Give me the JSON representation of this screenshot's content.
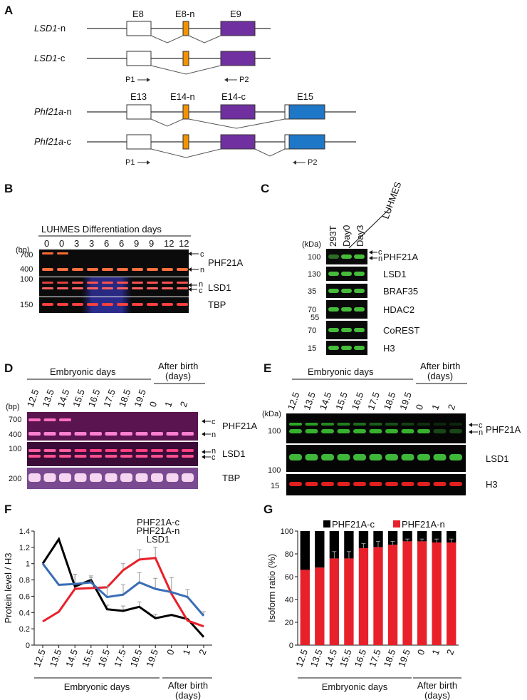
{
  "panels": {
    "a": "A",
    "b": "B",
    "c": "C",
    "d": "D",
    "e": "E",
    "f": "F",
    "g": "G"
  },
  "panel_a": {
    "lsd1": {
      "gene": "LSD1",
      "n_suffix": "-n",
      "c_suffix": "-c",
      "exons": [
        "E8",
        "E8-n",
        "E9"
      ],
      "p1": "P1",
      "p2": "P2"
    },
    "phf21a": {
      "gene": "Phf21a",
      "n_suffix": "-n",
      "c_suffix": "-c",
      "exons": [
        "E13",
        "E14-n",
        "E14-c",
        "E15"
      ],
      "p1": "P1",
      "p2": "P2"
    },
    "colors": {
      "orange": "#f39200",
      "purple": "#7030a0",
      "blue": "#1f77c8"
    }
  },
  "panel_b": {
    "title": "LUHMES Differentiation days",
    "lanes": [
      "0",
      "0",
      "3",
      "3",
      "6",
      "6",
      "9",
      "9",
      "12",
      "12"
    ],
    "unit": "(bp)",
    "markers": [
      "700",
      "400",
      "100",
      "150"
    ],
    "bands": {
      "PHF21A": "PHF21A",
      "LSD1": "LSD1",
      "TBP": "TBP"
    },
    "arrows": {
      "c": "c",
      "n": "n"
    }
  },
  "panel_c": {
    "header_group": "LUHMES",
    "lanes": [
      "293T",
      "Day0",
      "Day3"
    ],
    "unit": "(kDa)",
    "rows": [
      {
        "marker": "100",
        "label": "PHF21A"
      },
      {
        "marker": "130",
        "label": "LSD1"
      },
      {
        "marker": "35",
        "label": "BRAF35"
      },
      {
        "marker": "70",
        "label": "HDAC2",
        "marker2": "55"
      },
      {
        "marker": "70",
        "label": "CoREST"
      },
      {
        "marker": "15",
        "label": "H3"
      }
    ],
    "arrows": {
      "c": "c",
      "n": "n"
    }
  },
  "panel_d": {
    "group1": "Embryonic days",
    "group2": "After birth\n(days)",
    "group2_line1": "After birth",
    "group2_line2": "(days)",
    "lanes": [
      "12.5",
      "13.5",
      "14.5",
      "15.5",
      "16.5",
      "17.5",
      "18.5",
      "19.5",
      "0",
      "1",
      "2"
    ],
    "unit": "(bp)",
    "markers": [
      "700",
      "400",
      "100",
      "200"
    ],
    "bands": {
      "PHF21A": "PHF21A",
      "LSD1": "LSD1",
      "TBP": "TBP"
    }
  },
  "panel_e": {
    "group1": "Embryonic days",
    "group2_line1": "After birth",
    "group2_line2": "(days)",
    "lanes": [
      "12.5",
      "13.5",
      "14.5",
      "15.5",
      "16.5",
      "17.5",
      "18.5",
      "19.5",
      "0",
      "1",
      "2"
    ],
    "unit": "(kDa)",
    "markers": [
      "100",
      "100",
      "15"
    ],
    "bands": {
      "PHF21A": "PHF21A",
      "LSD1": "LSD1",
      "H3": "H3"
    }
  },
  "chart_data": [
    {
      "type": "line",
      "x": [
        "12.5",
        "13.5",
        "14.5",
        "15.5",
        "16.5",
        "17.5",
        "18.5",
        "19.5",
        "0",
        "1",
        "2"
      ],
      "ylabel": "Protein level / H3",
      "ylim": [
        0,
        1.4
      ],
      "yticks": [
        "0",
        "0.2",
        "0.4",
        "0.6",
        "0.8",
        "1",
        "1.2",
        "1.4"
      ],
      "xgroup1": "Embryonic days",
      "xgroup2_line1": "After birth",
      "xgroup2_line2": "(days)",
      "series": [
        {
          "name": "PHF21A-c",
          "color": "#000000",
          "values": [
            1.0,
            1.3,
            0.72,
            0.8,
            0.44,
            0.42,
            0.47,
            0.33,
            0.37,
            0.32,
            0.1
          ],
          "err": [
            0,
            0,
            0.15,
            0.05,
            0.05,
            0.06,
            0.06,
            0.05,
            0,
            0,
            0
          ]
        },
        {
          "name": "PHF21A-n",
          "color": "#e8202a",
          "values": [
            0.29,
            0.41,
            0.69,
            0.7,
            0.71,
            0.92,
            1.05,
            1.07,
            0.63,
            0.3,
            0.23
          ],
          "err": [
            0,
            0,
            0,
            0,
            0,
            0.08,
            0.12,
            0.13,
            0,
            0,
            0
          ]
        },
        {
          "name": "LSD1",
          "color": "#3a6db5",
          "values": [
            1.0,
            0.74,
            0.75,
            0.77,
            0.59,
            0.62,
            0.77,
            0.69,
            0.65,
            0.59,
            0.36
          ],
          "err": [
            0,
            0,
            0.12,
            0.06,
            0.13,
            0.12,
            0.12,
            0.13,
            0.18,
            0.09,
            0.05
          ]
        }
      ]
    },
    {
      "type": "bar",
      "stacked": true,
      "categories": [
        "12.5",
        "13.5",
        "14.5",
        "15.5",
        "16.5",
        "17.5",
        "18.5",
        "19.5",
        "0",
        "1",
        "2"
      ],
      "ylabel": "Isoform ratio (%)",
      "ylim": [
        0,
        100
      ],
      "yticks": [
        "0",
        "20",
        "40",
        "60",
        "80",
        "100"
      ],
      "xgroup1": "Embryonic days",
      "xgroup2_line1": "After birth",
      "xgroup2_line2": "(days)",
      "series": [
        {
          "name": "PHF21A-n",
          "color": "#e8202a",
          "values": [
            66,
            68,
            76,
            76,
            85,
            86,
            88,
            91,
            91,
            90,
            90
          ],
          "err": [
            0,
            0,
            6,
            6,
            4,
            5,
            3,
            2,
            2,
            3,
            3
          ]
        },
        {
          "name": "PHF21A-c",
          "color": "#000000",
          "values": [
            34,
            32,
            24,
            24,
            15,
            14,
            12,
            9,
            9,
            10,
            10
          ]
        }
      ]
    }
  ]
}
